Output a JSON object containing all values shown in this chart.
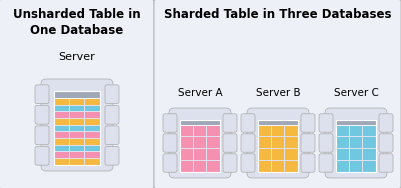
{
  "title_left": "Unsharded Table in\nOne Database",
  "title_right": "Sharded Table in Three Databases",
  "server_label": "Server",
  "server_labels_right": [
    "Server A",
    "Server B",
    "Server C"
  ],
  "panel_left_bg": "#edf0f7",
  "panel_right_bg": "#edf0f7",
  "server_bg": "#dde1ed",
  "table_header_color": "#a0a8b8",
  "row_colors_orange": "#f5b942",
  "row_colors_pink": "#f590b0",
  "row_colors_blue": "#70c8e0",
  "border_color": "#bbbbbb",
  "title_fontsize": 8.5,
  "label_fontsize": 8,
  "unsharded_pattern": [
    "orange",
    "blue",
    "pink",
    "orange",
    "blue",
    "pink",
    "orange",
    "blue",
    "pink",
    "orange"
  ],
  "sharded_patterns": [
    [
      "pink",
      "pink",
      "pink",
      "pink"
    ],
    [
      "orange",
      "orange",
      "orange",
      "orange"
    ],
    [
      "blue",
      "blue",
      "blue",
      "blue"
    ]
  ]
}
